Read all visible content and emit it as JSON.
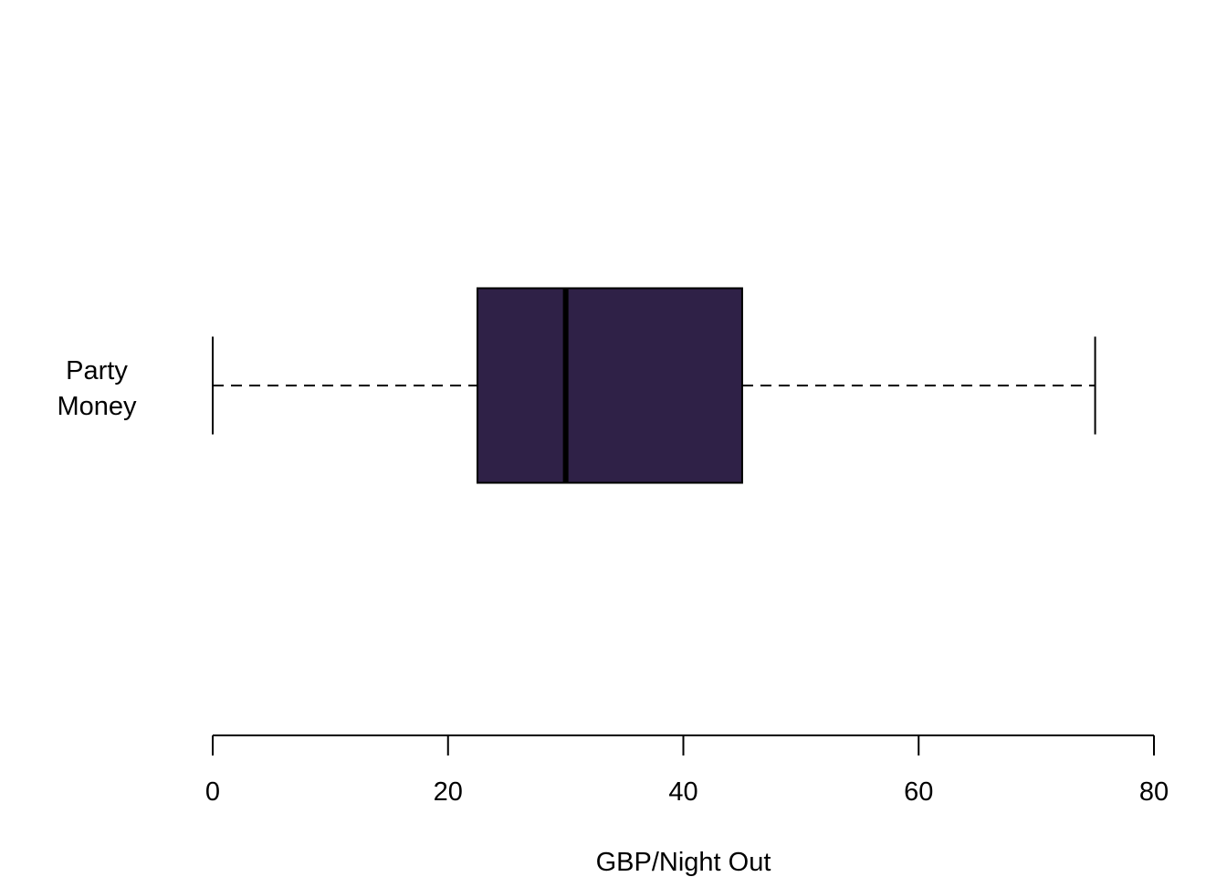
{
  "chart_data": {
    "type": "boxplot",
    "orientation": "horizontal",
    "xlabel": "GBP/Night Out",
    "xlim": [
      0,
      80
    ],
    "xticks": [
      0,
      20,
      40,
      60,
      80
    ],
    "xtick_labels": [
      "0",
      "20",
      "40",
      "60",
      "80"
    ],
    "grid": false,
    "series": [
      {
        "name_lines": [
          "Party",
          "Money"
        ],
        "min": 0,
        "q1": 22.5,
        "median": 30,
        "q3": 45,
        "max": 75,
        "fill_color": "#2f2147",
        "median_color": "#000000"
      }
    ]
  }
}
